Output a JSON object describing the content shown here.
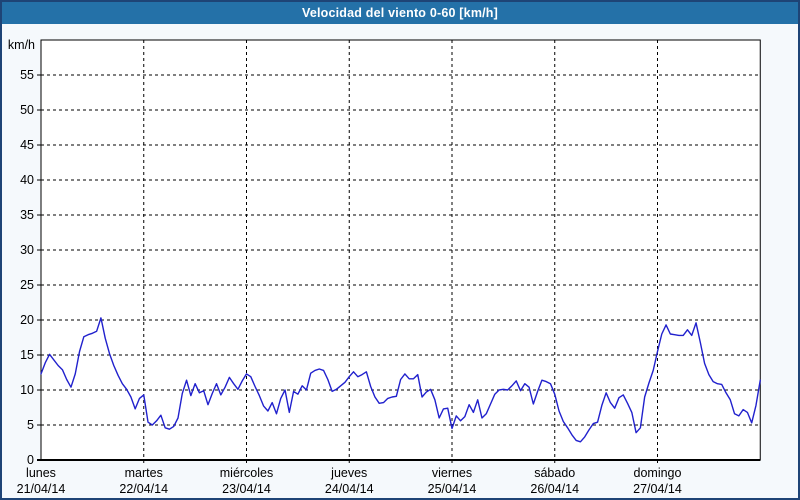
{
  "titlebar": {
    "title": "Velocidad del viento 0-60 [km/h]"
  },
  "colors": {
    "titlebar_bg": "#2471a8",
    "frame_border": "#1e4476",
    "page_bg": "#f5f9fc",
    "plot_bg": "#ffffff",
    "grid": "#000000",
    "line": "#2121cd"
  },
  "chart_data": {
    "type": "line",
    "title": "Velocidad del viento 0-60 [km/h]",
    "xlabel": "",
    "ylabel": "km/h",
    "ylim": [
      0,
      60
    ],
    "ytick_step": 5,
    "ytick_labels": [
      "0",
      "5",
      "10",
      "15",
      "20",
      "25",
      "30",
      "35",
      "40",
      "45",
      "50",
      "55"
    ],
    "grid": "dashed",
    "legend": "none",
    "points_per_day": 24,
    "x_days": [
      {
        "name": "lunes",
        "date": "21/04/14"
      },
      {
        "name": "martes",
        "date": "22/04/14"
      },
      {
        "name": "miércoles",
        "date": "23/04/14"
      },
      {
        "name": "jueves",
        "date": "24/04/14"
      },
      {
        "name": "viernes",
        "date": "25/04/14"
      },
      {
        "name": "sábado",
        "date": "26/04/14"
      },
      {
        "name": "domingo",
        "date": "27/04/14"
      }
    ],
    "series": [
      {
        "name": "Velocidad del viento",
        "unit": "km/h",
        "color": "#2121cd",
        "values": [
          12.3,
          13.9,
          15.1,
          14.3,
          13.5,
          12.9,
          11.5,
          10.4,
          12.3,
          15.5,
          17.6,
          17.9,
          18.1,
          18.4,
          20.3,
          17.4,
          15.2,
          13.5,
          12.1,
          10.9,
          10.1,
          9.0,
          7.3,
          8.8,
          9.3,
          5.4,
          5.0,
          5.6,
          6.4,
          4.6,
          4.4,
          4.8,
          6.0,
          9.5,
          11.4,
          9.2,
          10.9,
          9.6,
          9.9,
          7.9,
          9.5,
          10.9,
          9.3,
          10.4,
          11.8,
          10.9,
          10.1,
          11.3,
          12.3,
          11.9,
          10.5,
          9.2,
          7.7,
          7.0,
          8.2,
          6.6,
          8.8,
          10.0,
          6.8,
          9.8,
          9.4,
          10.6,
          10.0,
          12.4,
          12.8,
          13.0,
          12.8,
          11.5,
          9.8,
          10.1,
          10.6,
          11.1,
          11.9,
          12.6,
          11.9,
          12.2,
          12.6,
          10.5,
          9.0,
          8.1,
          8.2,
          8.8,
          9.0,
          9.1,
          11.5,
          12.3,
          11.6,
          11.6,
          12.2,
          9.0,
          9.7,
          10.1,
          8.6,
          6.0,
          7.3,
          7.4,
          4.5,
          6.3,
          5.6,
          6.2,
          7.9,
          6.8,
          8.6,
          6.0,
          6.6,
          8.0,
          9.4,
          10.0,
          10.1,
          10.0,
          10.6,
          11.3,
          9.9,
          10.9,
          10.4,
          8.0,
          9.8,
          11.4,
          11.2,
          10.9,
          9.4,
          7.0,
          5.5,
          4.6,
          3.6,
          2.8,
          2.6,
          3.3,
          4.3,
          5.2,
          5.4,
          7.8,
          9.6,
          8.2,
          7.4,
          8.9,
          9.3,
          8.1,
          6.8,
          3.9,
          4.6,
          9.0,
          11.0,
          12.8,
          15.5,
          18.0,
          19.3,
          18.0,
          17.9,
          17.8,
          17.8,
          18.6,
          17.8,
          19.6,
          16.8,
          13.8,
          12.2,
          11.2,
          10.9,
          10.8,
          9.6,
          8.6,
          6.6,
          6.3,
          7.2,
          6.8,
          5.3,
          7.8,
          11.4
        ]
      }
    ]
  }
}
